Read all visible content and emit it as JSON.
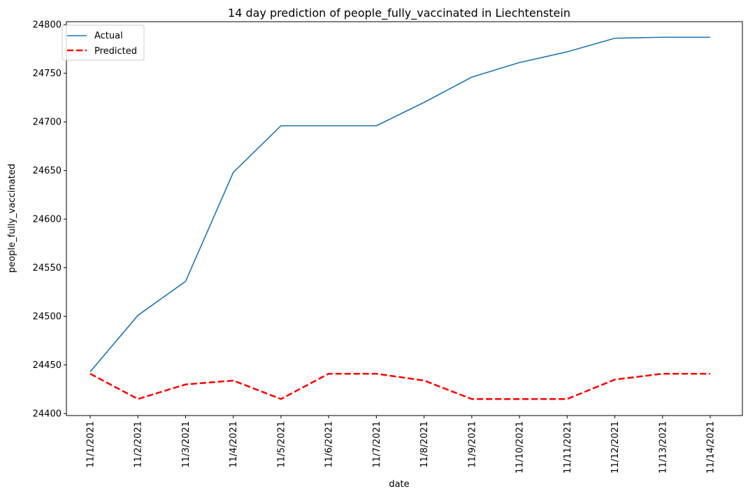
{
  "chart_data": {
    "type": "line",
    "title": "14 day prediction of people_fully_vaccinated in Liechtenstein",
    "xlabel": "date",
    "ylabel": "people_fully_vaccinated",
    "categories": [
      "11/1/2021",
      "11/2/2021",
      "11/3/2021",
      "11/4/2021",
      "11/5/2021",
      "11/6/2021",
      "11/7/2021",
      "11/8/2021",
      "11/9/2021",
      "11/10/2021",
      "11/11/2021",
      "11/12/2021",
      "11/13/2021",
      "11/14/2021"
    ],
    "ylim": [
      24398,
      24803
    ],
    "yticks": [
      24400,
      24450,
      24500,
      24550,
      24600,
      24650,
      24700,
      24750,
      24800
    ],
    "legend_position": "top-left",
    "grid": false,
    "series": [
      {
        "name": "Actual",
        "color": "#1f77b4",
        "style": "solid",
        "values": [
          24443,
          24501,
          24536,
          24648,
          24696,
          24696,
          24696,
          24720,
          24746,
          24761,
          24772,
          24786,
          24787,
          24787
        ]
      },
      {
        "name": "Predicted",
        "color": "#ff0000",
        "style": "dashed",
        "values": [
          24441,
          24415,
          24430,
          24434,
          24415,
          24441,
          24441,
          24434,
          24415,
          24415,
          24415,
          24435,
          24441,
          24441
        ]
      }
    ]
  }
}
